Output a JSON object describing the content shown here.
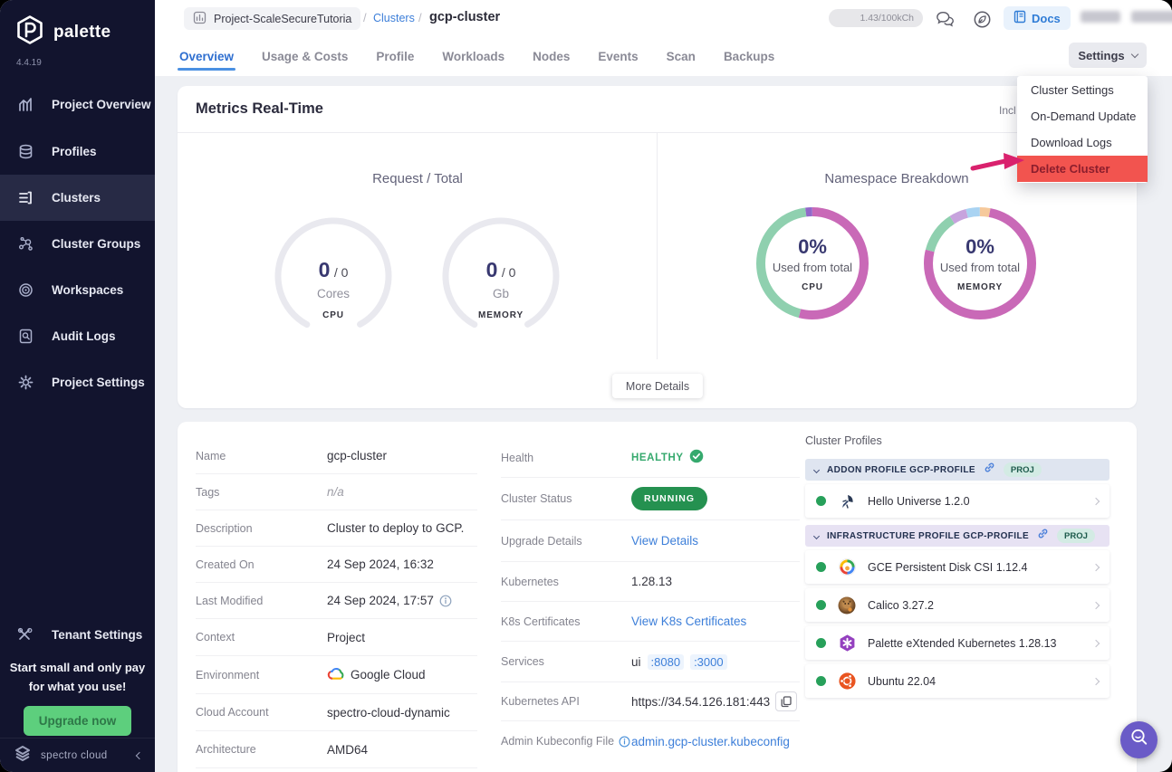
{
  "colors": {
    "accent_blue": "#3d7fd9",
    "active_tab_blue": "#2f6fd0",
    "running_green": "#259150",
    "healthy_green": "#35a96d",
    "delete_item_bg": "#f2544f",
    "delete_item_text": "#8b1e2d",
    "annotation_arrow_pink": "#d9216d",
    "upgrade_button_green": "#5dcf7d",
    "sidebar_bg": "#12142e",
    "donut_pink": "#c969b7",
    "donut_green": "#8fd0af"
  },
  "sidebar": {
    "brand": "palette",
    "version": "4.4.19",
    "items": [
      {
        "label": "Project Overview",
        "icon": "bar-chart-icon",
        "active": false
      },
      {
        "label": "Profiles",
        "icon": "layers-icon",
        "active": false
      },
      {
        "label": "Clusters",
        "icon": "list-icon",
        "active": true
      },
      {
        "label": "Cluster Groups",
        "icon": "network-icon",
        "active": false
      },
      {
        "label": "Workspaces",
        "icon": "target-icon",
        "active": false
      },
      {
        "label": "Audit Logs",
        "icon": "audit-icon",
        "active": false
      },
      {
        "label": "Project Settings",
        "icon": "gear-icon",
        "active": false
      }
    ],
    "tenant_settings_label": "Tenant Settings",
    "promo_line1": "Start small and only pay",
    "promo_line2": "for what you use!",
    "upgrade_button_label": "Upgrade now",
    "footer_brand": "spectro cloud"
  },
  "header": {
    "project_chip_label": "Project-ScaleSecureTutoria",
    "breadcrumb_separator": "/",
    "clusters_link_label": "Clusters",
    "cluster_name": "gcp-cluster",
    "usage_pill": "1.43/100kCh",
    "docs_button_label": "Docs"
  },
  "tabs": {
    "items": [
      "Overview",
      "Usage & Costs",
      "Profile",
      "Workloads",
      "Nodes",
      "Events",
      "Scan",
      "Backups"
    ],
    "active": "Overview",
    "settings_button_label": "Settings"
  },
  "settings_menu": {
    "items": [
      "Cluster Settings",
      "On-Demand Update",
      "Download Logs",
      "Delete Cluster"
    ]
  },
  "metrics": {
    "title": "Metrics Real-Time",
    "clipped_right_text": "Incl",
    "request_total": {
      "title": "Request / Total",
      "gauges": [
        {
          "value": "0",
          "total_suffix": "/ 0",
          "unit": "Cores",
          "metric": "CPU"
        },
        {
          "value": "0",
          "total_suffix": "/ 0",
          "unit": "Gb",
          "metric": "MEMORY"
        }
      ]
    },
    "namespace_breakdown": {
      "title": "Namespace Breakdown",
      "donuts": [
        {
          "percent": "0%",
          "caption": "Used from total",
          "metric": "CPU"
        },
        {
          "percent": "0%",
          "caption": "Used from total",
          "metric": "MEMORY"
        }
      ]
    },
    "more_details_button_label": "More Details"
  },
  "chart_data": [
    {
      "type": "gauge",
      "title": "Request / Total",
      "metric": "CPU",
      "value": 0,
      "total": 0,
      "unit": "Cores"
    },
    {
      "type": "gauge",
      "title": "Request / Total",
      "metric": "MEMORY",
      "value": 0,
      "total": 0,
      "unit": "Gb"
    },
    {
      "type": "donut",
      "title": "Namespace Breakdown",
      "metric": "CPU",
      "percent_used": 0,
      "center_label": "0% Used from total CPU",
      "segments": [
        {
          "color": "#c969b7",
          "value": 54
        },
        {
          "color": "#8fd0af",
          "value": 44
        },
        {
          "color": "#9168c9",
          "value": 2
        }
      ]
    },
    {
      "type": "donut",
      "title": "Namespace Breakdown",
      "metric": "MEMORY",
      "percent_used": 0,
      "center_label": "0% Used from total MEMORY",
      "segments": [
        {
          "color": "#f6c99b",
          "value": 3
        },
        {
          "color": "#c969b7",
          "value": 76
        },
        {
          "color": "#8fd0af",
          "value": 12
        },
        {
          "color": "#c7a3dd",
          "value": 5
        },
        {
          "color": "#a9d3f2",
          "value": 4
        }
      ]
    }
  ],
  "details": {
    "rows": [
      {
        "label": "Name",
        "value": "gcp-cluster"
      },
      {
        "label": "Tags",
        "value": "n/a"
      },
      {
        "label": "Description",
        "value": "Cluster to deploy to GCP."
      },
      {
        "label": "Created On",
        "value": "24 Sep 2024, 16:32"
      },
      {
        "label": "Last Modified",
        "value": "24 Sep 2024, 17:57"
      },
      {
        "label": "Context",
        "value": "Project"
      },
      {
        "label": "Environment",
        "value": "Google Cloud"
      },
      {
        "label": "Cloud Account",
        "value": "spectro-cloud-dynamic"
      },
      {
        "label": "Architecture",
        "value": "AMD64"
      }
    ]
  },
  "status": {
    "health_label": "Health",
    "health_value": "HEALTHY",
    "cluster_status_label": "Cluster Status",
    "cluster_status_value": "RUNNING",
    "upgrade_label": "Upgrade Details",
    "upgrade_link_label": "View Details",
    "kubernetes_label": "Kubernetes",
    "kubernetes_value": "1.28.13",
    "certificates_label": "K8s Certificates",
    "certificates_link_label": "View K8s Certificates",
    "services_label": "Services",
    "services_name": "ui",
    "services_ports": [
      ":8080",
      ":3000"
    ],
    "api_label": "Kubernetes API",
    "api_value": "https://34.54.126.181:443",
    "kubeconfig_label": "Admin Kubeconfig File",
    "kubeconfig_link_label": "admin.gcp-cluster.kubeconfig"
  },
  "profiles": {
    "title": "Cluster Profiles",
    "sections": [
      {
        "header": "ADDON PROFILE GCP-PROFILE",
        "badge": "PROJ",
        "items": [
          {
            "label": "Hello Universe 1.2.0",
            "icon": "hello-universe-icon"
          }
        ]
      },
      {
        "header": "INFRASTRUCTURE PROFILE GCP-PROFILE",
        "badge": "PROJ",
        "items": [
          {
            "label": "GCE Persistent Disk CSI 1.12.4",
            "icon": "gce-disk-icon"
          },
          {
            "label": "Calico 3.27.2",
            "icon": "calico-icon"
          },
          {
            "label": "Palette eXtended Kubernetes 1.28.13",
            "icon": "pxk-icon"
          },
          {
            "label": "Ubuntu 22.04",
            "icon": "ubuntu-icon"
          }
        ]
      }
    ]
  },
  "fab": {
    "icon": "search-smiley-icon"
  }
}
